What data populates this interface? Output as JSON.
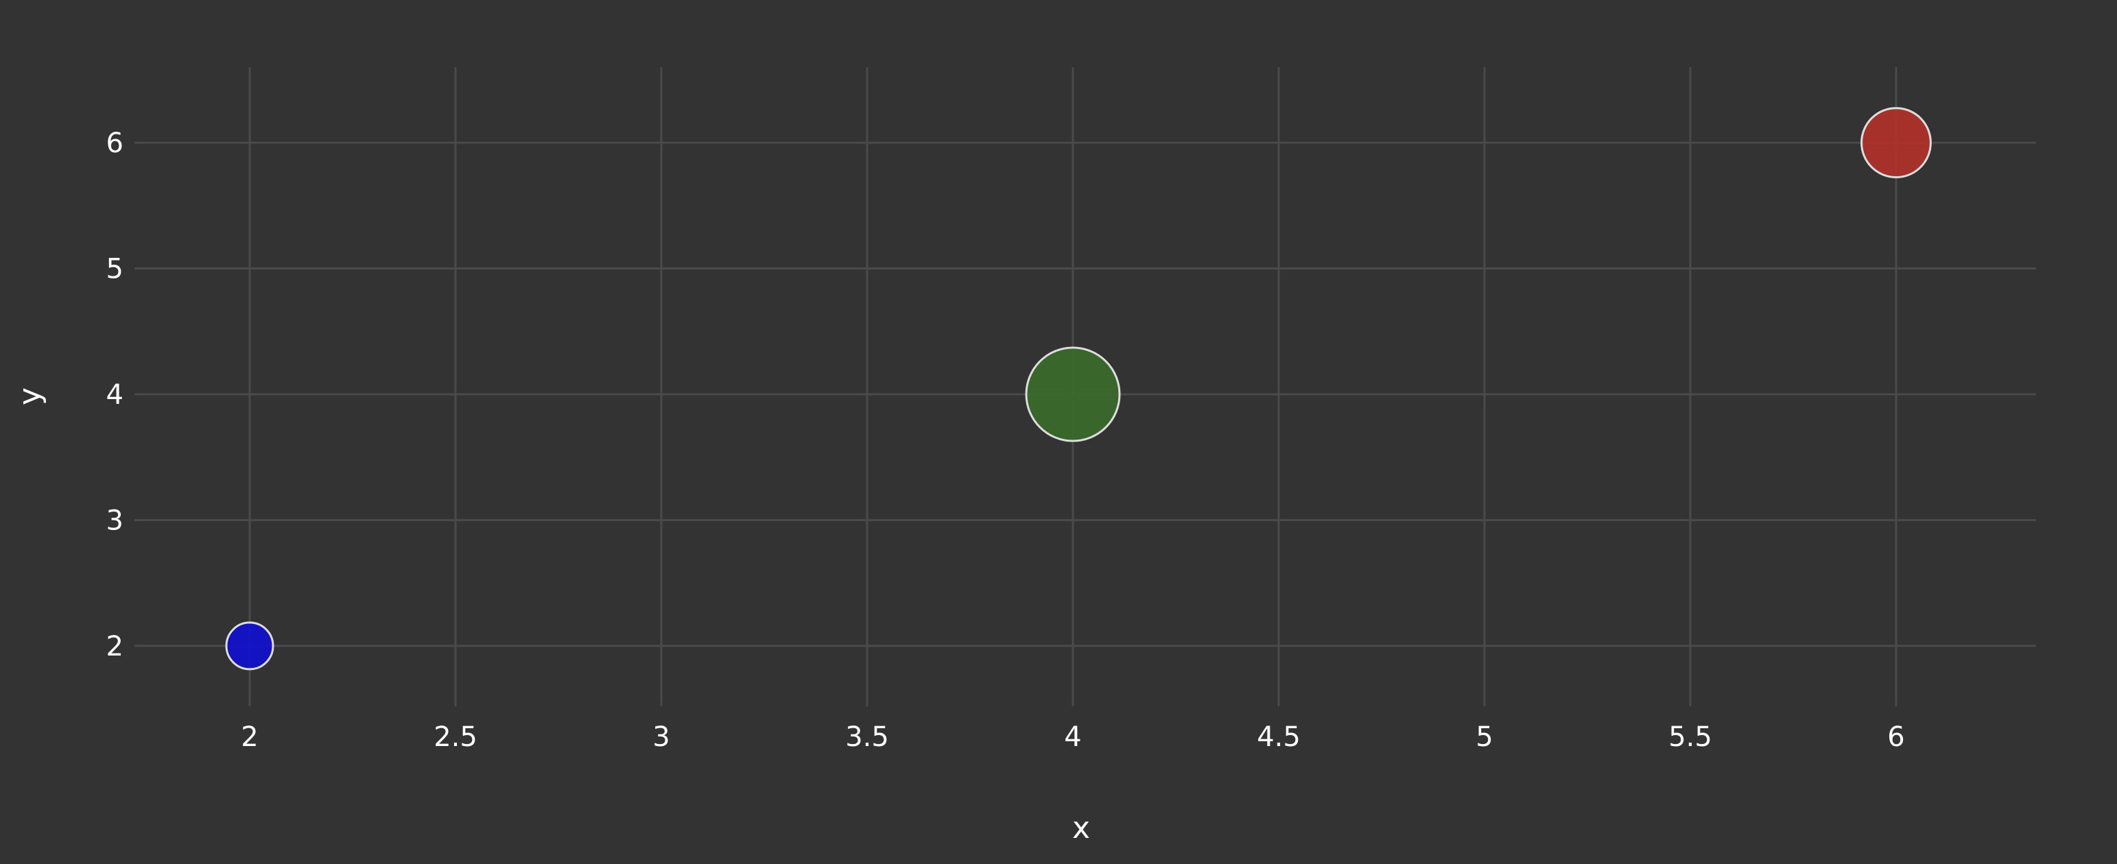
{
  "chart_data": {
    "type": "scatter",
    "title": "",
    "xlabel": "x",
    "ylabel": "y",
    "x_ticks": [
      2,
      2.5,
      3,
      3.5,
      4,
      4.5,
      5,
      5.5,
      6
    ],
    "y_ticks": [
      2,
      3,
      4,
      5,
      6
    ],
    "xlim": [
      1.72,
      6.34
    ],
    "ylim": [
      1.52,
      6.6
    ],
    "grid": true,
    "legend": "none",
    "points": [
      {
        "x": 2,
        "y": 2,
        "size": 1,
        "color": "#0f0fd0"
      },
      {
        "x": 4,
        "y": 4,
        "size": 4,
        "color": "#3a6b2a"
      },
      {
        "x": 6,
        "y": 6,
        "size": 2.2,
        "color": "#b3312a"
      }
    ]
  },
  "colors": {
    "background": "#333333",
    "grid": "#4a4a4a",
    "text": "#ffffff",
    "marker_outline": "#dddddd"
  }
}
